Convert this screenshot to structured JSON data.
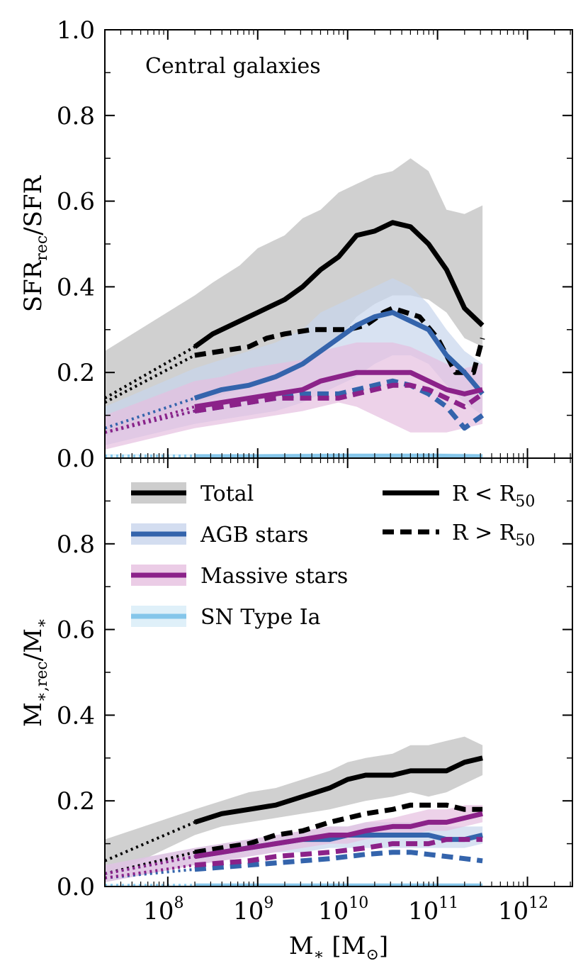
{
  "chart_data": {
    "type": "line",
    "xscale": "log",
    "xlim_log10": [
      7.3,
      12.5
    ],
    "xticks": [
      {
        "log10": 8,
        "base": "10",
        "exp": "8"
      },
      {
        "log10": 9,
        "base": "10",
        "exp": "9"
      },
      {
        "log10": 10,
        "base": "10",
        "exp": "10"
      },
      {
        "log10": 11,
        "base": "10",
        "exp": "11"
      },
      {
        "log10": 12,
        "base": "10",
        "exp": "12"
      }
    ],
    "xlabel": {
      "main": "M",
      "sub": "∗",
      "unit_open": " [M",
      "unit_sub": "⊙",
      "unit_close": "]"
    },
    "legend": {
      "components": [
        {
          "key": "total",
          "label": "Total",
          "color": "#000000",
          "band": "#c0c0c0"
        },
        {
          "key": "agb",
          "label": "AGB stars",
          "color": "#3464ac",
          "band": "#c8d5ec"
        },
        {
          "key": "massive",
          "label": "Massive stars",
          "color": "#8b2289",
          "band": "#e6bfe0"
        },
        {
          "key": "snia",
          "label": "SN Type Ia",
          "color": "#85c6ea",
          "band": "#d7ecf8"
        }
      ],
      "styles": [
        {
          "label": "R < R",
          "sub": "50",
          "dash": false
        },
        {
          "label": "R > R",
          "sub": "50",
          "dash": true
        }
      ]
    },
    "panels": [
      {
        "id": "top",
        "ylim": [
          0,
          1
        ],
        "yticks": [
          "0.0",
          "0.2",
          "0.4",
          "0.6",
          "0.8",
          "1.0"
        ],
        "ylabel": {
          "main": "SFR",
          "sub": "rec",
          "tail": "/SFR"
        },
        "annotation": "Central galaxies",
        "series": [
          {
            "component": "total",
            "region": "R < R50",
            "x": [
              7.3,
              8.3,
              8.5,
              8.8,
              9.0,
              9.3,
              9.5,
              9.7,
              9.9,
              10.1,
              10.3,
              10.5,
              10.7,
              10.9,
              11.1,
              11.3,
              11.5
            ],
            "y": [
              0.14,
              0.26,
              0.29,
              0.32,
              0.34,
              0.37,
              0.4,
              0.44,
              0.47,
              0.52,
              0.53,
              0.55,
              0.54,
              0.5,
              0.44,
              0.35,
              0.31
            ],
            "band_low": [
              0.05,
              0.13,
              0.14,
              0.16,
              0.18,
              0.2,
              0.22,
              0.25,
              0.28,
              0.33,
              0.36,
              0.38,
              0.38,
              0.37,
              0.34,
              0.28,
              0.26
            ],
            "band_high": [
              0.25,
              0.38,
              0.41,
              0.45,
              0.49,
              0.52,
              0.56,
              0.58,
              0.62,
              0.64,
              0.66,
              0.67,
              0.7,
              0.67,
              0.58,
              0.57,
              0.59
            ]
          },
          {
            "component": "total",
            "region": "R > R50",
            "x": [
              7.3,
              8.3,
              8.6,
              8.9,
              9.1,
              9.3,
              9.6,
              9.8,
              10.0,
              10.2,
              10.4,
              10.5,
              10.8,
              11.0,
              11.2,
              11.4,
              11.5
            ],
            "y": [
              0.13,
              0.24,
              0.25,
              0.26,
              0.28,
              0.29,
              0.3,
              0.3,
              0.3,
              0.31,
              0.34,
              0.35,
              0.33,
              0.28,
              0.2,
              0.2,
              0.28
            ],
            "band_low": null,
            "band_high": null
          },
          {
            "component": "agb",
            "region": "R < R50",
            "x": [
              7.3,
              8.3,
              8.6,
              8.9,
              9.2,
              9.5,
              9.7,
              9.9,
              10.1,
              10.3,
              10.5,
              10.7,
              10.9,
              11.1,
              11.3,
              11.5
            ],
            "y": [
              0.07,
              0.14,
              0.16,
              0.17,
              0.19,
              0.22,
              0.25,
              0.28,
              0.31,
              0.33,
              0.34,
              0.32,
              0.3,
              0.24,
              0.2,
              0.15
            ],
            "band_low": [
              0.03,
              0.08,
              0.09,
              0.1,
              0.11,
              0.13,
              0.15,
              0.17,
              0.19,
              0.22,
              0.24,
              0.24,
              0.22,
              0.17,
              0.13,
              0.1
            ],
            "band_high": [
              0.12,
              0.21,
              0.23,
              0.25,
              0.27,
              0.3,
              0.34,
              0.36,
              0.38,
              0.4,
              0.42,
              0.4,
              0.36,
              0.3,
              0.25,
              0.22
            ]
          },
          {
            "component": "agb",
            "region": "R > R50",
            "x": [
              7.3,
              8.3,
              8.6,
              8.9,
              9.2,
              9.5,
              9.7,
              9.9,
              10.1,
              10.3,
              10.5,
              10.7,
              10.9,
              11.1,
              11.3,
              11.5
            ],
            "y": [
              0.06,
              0.11,
              0.12,
              0.13,
              0.14,
              0.15,
              0.15,
              0.15,
              0.16,
              0.17,
              0.18,
              0.17,
              0.15,
              0.12,
              0.07,
              0.1
            ],
            "band_low": null,
            "band_high": null
          },
          {
            "component": "massive",
            "region": "R < R50",
            "x": [
              7.3,
              8.3,
              8.6,
              8.9,
              9.2,
              9.5,
              9.7,
              9.9,
              10.1,
              10.3,
              10.5,
              10.7,
              10.9,
              11.1,
              11.3,
              11.5
            ],
            "y": [
              0.06,
              0.12,
              0.13,
              0.14,
              0.15,
              0.16,
              0.18,
              0.19,
              0.2,
              0.2,
              0.2,
              0.2,
              0.18,
              0.16,
              0.15,
              0.16
            ],
            "band_low": [
              0.02,
              0.07,
              0.08,
              0.09,
              0.1,
              0.11,
              0.12,
              0.13,
              0.12,
              0.1,
              0.08,
              0.06,
              0.06,
              0.06,
              0.07,
              0.08
            ],
            "band_high": [
              0.1,
              0.18,
              0.19,
              0.21,
              0.22,
              0.23,
              0.25,
              0.26,
              0.27,
              0.27,
              0.27,
              0.26,
              0.24,
              0.22,
              0.21,
              0.22
            ]
          },
          {
            "component": "massive",
            "region": "R > R50",
            "x": [
              7.3,
              8.3,
              8.6,
              8.9,
              9.2,
              9.5,
              9.7,
              9.9,
              10.1,
              10.3,
              10.5,
              10.7,
              10.9,
              11.1,
              11.3,
              11.5
            ],
            "y": [
              0.06,
              0.11,
              0.12,
              0.13,
              0.14,
              0.14,
              0.14,
              0.14,
              0.15,
              0.16,
              0.17,
              0.17,
              0.16,
              0.14,
              0.12,
              0.15
            ],
            "band_low": null,
            "band_high": null
          },
          {
            "component": "snia",
            "region": "R < R50",
            "x": [
              7.3,
              8.3,
              9.0,
              10.0,
              11.0,
              11.5
            ],
            "y": [
              0.005,
              0.005,
              0.005,
              0.006,
              0.006,
              0.005
            ],
            "band_low": [
              0.0,
              0.0,
              0.0,
              0.0,
              0.0,
              0.0
            ],
            "band_high": [
              0.01,
              0.01,
              0.01,
              0.012,
              0.012,
              0.01
            ]
          }
        ]
      },
      {
        "id": "bottom",
        "ylim": [
          0,
          1
        ],
        "yticks": [
          "0.0",
          "0.2",
          "0.4",
          "0.6",
          "0.8"
        ],
        "ylabel": {
          "main": "M",
          "sub": "∗,rec",
          "tail": "/M",
          "tail_sub": "∗"
        },
        "annotation": "",
        "series": [
          {
            "component": "total",
            "region": "R < R50",
            "x": [
              7.3,
              8.3,
              8.6,
              8.9,
              9.2,
              9.5,
              9.8,
              10.0,
              10.2,
              10.5,
              10.7,
              10.9,
              11.1,
              11.3,
              11.5
            ],
            "y": [
              0.06,
              0.15,
              0.17,
              0.18,
              0.19,
              0.21,
              0.23,
              0.25,
              0.26,
              0.26,
              0.27,
              0.27,
              0.27,
              0.29,
              0.3
            ],
            "band_low": [
              0.02,
              0.12,
              0.14,
              0.15,
              0.16,
              0.17,
              0.18,
              0.19,
              0.2,
              0.21,
              0.22,
              0.21,
              0.22,
              0.24,
              0.26
            ],
            "band_high": [
              0.11,
              0.18,
              0.2,
              0.22,
              0.23,
              0.25,
              0.27,
              0.29,
              0.3,
              0.31,
              0.33,
              0.33,
              0.34,
              0.35,
              0.33
            ]
          },
          {
            "component": "total",
            "region": "R > R50",
            "x": [
              7.3,
              8.3,
              8.6,
              8.9,
              9.2,
              9.5,
              9.8,
              10.0,
              10.2,
              10.5,
              10.7,
              10.9,
              11.1,
              11.3,
              11.5
            ],
            "y": [
              0.03,
              0.08,
              0.09,
              0.1,
              0.12,
              0.13,
              0.15,
              0.16,
              0.17,
              0.18,
              0.19,
              0.19,
              0.19,
              0.18,
              0.18
            ],
            "band_low": null,
            "band_high": null
          },
          {
            "component": "agb",
            "region": "R < R50",
            "x": [
              7.3,
              8.3,
              8.6,
              8.9,
              9.2,
              9.5,
              9.8,
              10.0,
              10.2,
              10.5,
              10.7,
              10.9,
              11.1,
              11.3,
              11.5
            ],
            "y": [
              0.03,
              0.07,
              0.08,
              0.09,
              0.1,
              0.11,
              0.11,
              0.12,
              0.12,
              0.12,
              0.12,
              0.12,
              0.11,
              0.11,
              0.12
            ],
            "band_low": [
              0.01,
              0.05,
              0.06,
              0.07,
              0.08,
              0.08,
              0.09,
              0.09,
              0.09,
              0.09,
              0.09,
              0.09,
              0.09,
              0.09,
              0.1
            ],
            "band_high": [
              0.05,
              0.09,
              0.1,
              0.11,
              0.12,
              0.13,
              0.14,
              0.14,
              0.15,
              0.15,
              0.15,
              0.15,
              0.14,
              0.14,
              0.14
            ]
          },
          {
            "component": "agb",
            "region": "R > R50",
            "x": [
              7.3,
              8.3,
              8.6,
              8.9,
              9.2,
              9.5,
              9.8,
              10.0,
              10.2,
              10.5,
              10.7,
              10.9,
              11.1,
              11.3,
              11.5
            ],
            "y": [
              0.02,
              0.04,
              0.045,
              0.05,
              0.055,
              0.06,
              0.065,
              0.07,
              0.075,
              0.08,
              0.08,
              0.075,
              0.07,
              0.065,
              0.06
            ],
            "band_low": null,
            "band_high": null
          },
          {
            "component": "massive",
            "region": "R < R50",
            "x": [
              7.3,
              8.3,
              8.6,
              8.9,
              9.2,
              9.5,
              9.8,
              10.0,
              10.2,
              10.5,
              10.7,
              10.9,
              11.1,
              11.3,
              11.5
            ],
            "y": [
              0.03,
              0.07,
              0.08,
              0.09,
              0.1,
              0.11,
              0.12,
              0.12,
              0.13,
              0.14,
              0.14,
              0.15,
              0.15,
              0.16,
              0.17
            ],
            "band_low": [
              0.01,
              0.05,
              0.06,
              0.07,
              0.08,
              0.09,
              0.1,
              0.1,
              0.11,
              0.12,
              0.12,
              0.13,
              0.13,
              0.14,
              0.15
            ],
            "band_high": [
              0.05,
              0.09,
              0.1,
              0.11,
              0.12,
              0.13,
              0.14,
              0.14,
              0.15,
              0.16,
              0.17,
              0.18,
              0.18,
              0.19,
              0.19
            ]
          },
          {
            "component": "massive",
            "region": "R > R50",
            "x": [
              7.3,
              8.3,
              8.6,
              8.9,
              9.2,
              9.5,
              9.8,
              10.0,
              10.2,
              10.5,
              10.7,
              10.9,
              11.1,
              11.3,
              11.5
            ],
            "y": [
              0.02,
              0.05,
              0.055,
              0.06,
              0.07,
              0.075,
              0.08,
              0.085,
              0.09,
              0.1,
              0.1,
              0.1,
              0.11,
              0.11,
              0.11
            ],
            "band_low": null,
            "band_high": null
          },
          {
            "component": "snia",
            "region": "R < R50",
            "x": [
              7.3,
              8.3,
              9.0,
              10.0,
              11.0,
              11.5
            ],
            "y": [
              0.003,
              0.003,
              0.003,
              0.003,
              0.003,
              0.003
            ],
            "band_low": [
              0.0,
              0.0,
              0.0,
              0.0,
              0.0,
              0.0
            ],
            "band_high": [
              0.006,
              0.006,
              0.006,
              0.006,
              0.006,
              0.006
            ]
          }
        ]
      }
    ]
  }
}
